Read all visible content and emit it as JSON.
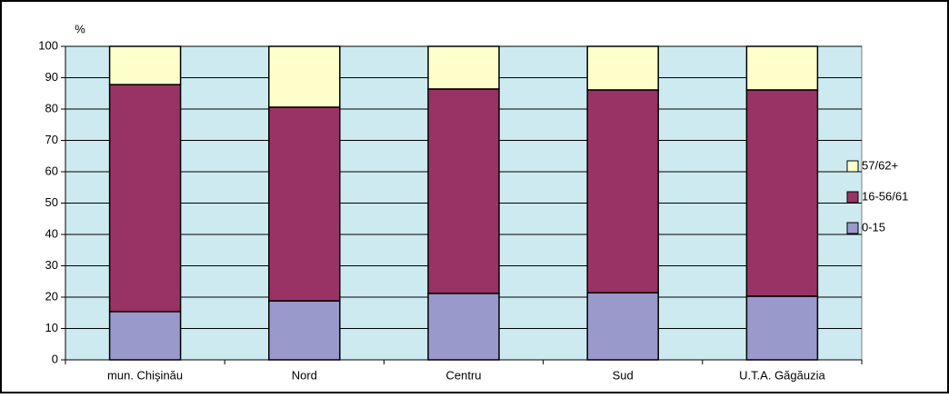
{
  "chart_data": {
    "type": "stacked_bar",
    "y_label": "%",
    "categories": [
      "mun. Chişinău",
      "Nord",
      "Centru",
      "Sud",
      "U.T.A. Găgăuzia"
    ],
    "series": [
      {
        "name": "0-15",
        "color": "#9999cc",
        "values": [
          15.4,
          18.8,
          21.2,
          21.4,
          20.3
        ]
      },
      {
        "name": "16-56/61",
        "color": "#993366",
        "values": [
          72.4,
          61.8,
          65.2,
          64.7,
          65.8
        ]
      },
      {
        "name": "57/62+",
        "color": "#ffffcc",
        "values": [
          12.2,
          19.4,
          13.6,
          13.9,
          13.9
        ]
      }
    ],
    "ylim": [
      0,
      100
    ],
    "yticks": [
      0,
      10,
      20,
      30,
      40,
      50,
      60,
      70,
      80,
      90,
      100
    ],
    "grid": true,
    "legend": "right",
    "plot_background": "#cdeaf0"
  }
}
